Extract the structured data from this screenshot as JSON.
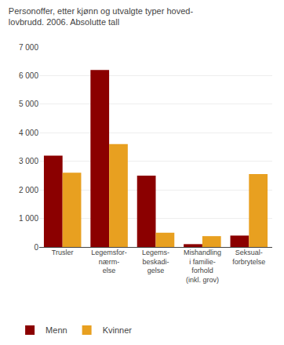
{
  "chart_data": {
    "type": "bar",
    "title": "Personoffer, etter kjønn og utvalgte typer hoved-\nlovbrudd. 2006. Absolutte tall",
    "categories": [
      "Trusler",
      "Legemsfor-\nnærm-\nelse",
      "Legems-\nbeskadi-\ngelse",
      "Mishandling\ni familie-\nforhold\n(inkl. grov)",
      "Seksual-\nforbrytelse"
    ],
    "series": [
      {
        "name": "Menn",
        "color": "#8B0000",
        "values": [
          3200,
          6200,
          2500,
          100,
          400
        ]
      },
      {
        "name": "Kvinner",
        "color": "#E8A020",
        "values": [
          2600,
          3600,
          500,
          380,
          2550
        ]
      }
    ],
    "ylim": [
      0,
      7000
    ],
    "yticks": [
      0,
      {
        "value": 1000,
        "label": "1 000"
      },
      {
        "value": 2000,
        "label": "2 000"
      },
      {
        "value": 3000,
        "label": "3 000"
      },
      {
        "value": 4000,
        "label": "4 000"
      },
      {
        "value": 5000,
        "label": "5 000"
      },
      {
        "value": 6000,
        "label": "6 000"
      },
      {
        "value": 7000,
        "label": "7 000"
      }
    ],
    "grid": true,
    "legend": "bottom"
  }
}
